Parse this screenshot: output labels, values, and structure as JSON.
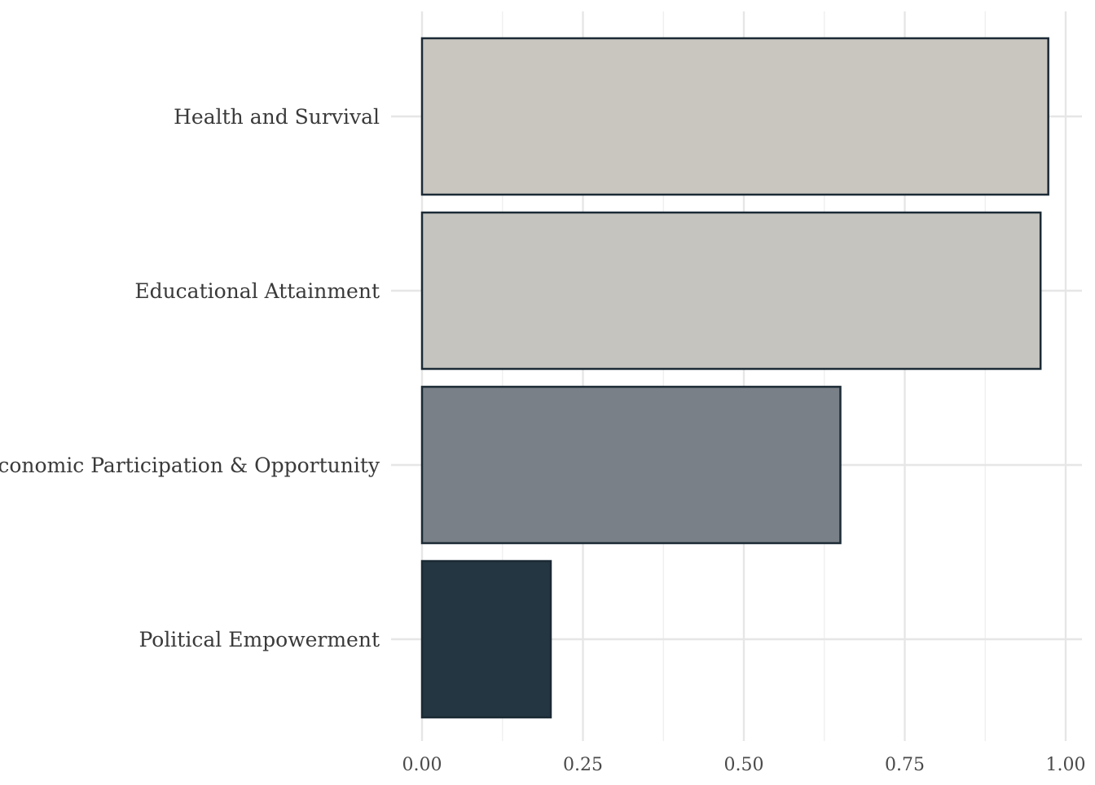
{
  "chart_data": {
    "type": "bar",
    "orientation": "horizontal",
    "categories": [
      "Health and Survival",
      "Educational Attainment",
      "Economic Participation & Opportunity",
      "Political Empowerment"
    ],
    "values": [
      0.973,
      0.961,
      0.65,
      0.2
    ],
    "colors": [
      "#c9c6c0",
      "#c5c4bf",
      "#7a8088",
      "#243642"
    ],
    "bar_outline_color": "#1b2a35",
    "xlim": [
      0,
      1
    ],
    "x_ticks": [
      0,
      0.25,
      0.5,
      0.75,
      1
    ],
    "x_tick_labels": [
      "0.00",
      "0.25",
      "0.50",
      "0.75",
      "1.00"
    ],
    "title": "",
    "xlabel": "",
    "ylabel": "",
    "grid": true,
    "legend": "none"
  }
}
